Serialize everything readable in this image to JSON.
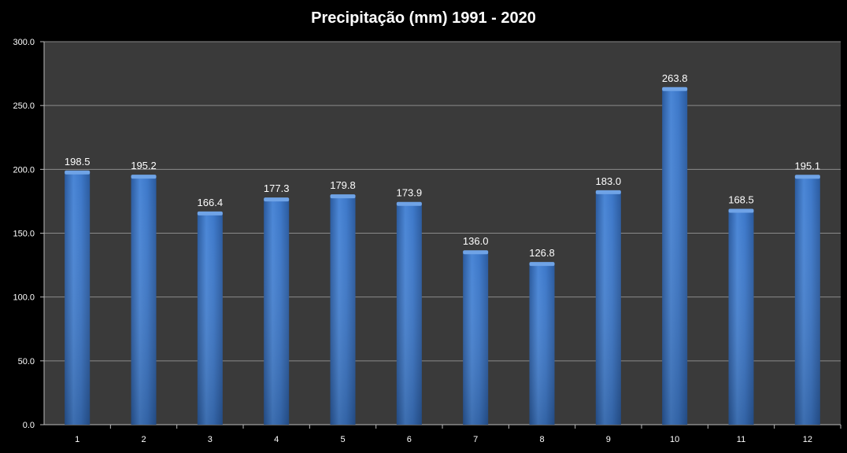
{
  "chart_data": {
    "type": "bar",
    "title": "Precipitação (mm) 1991 - 2020",
    "xlabel": "",
    "ylabel": "",
    "categories": [
      "1",
      "2",
      "3",
      "4",
      "5",
      "6",
      "7",
      "8",
      "9",
      "10",
      "11",
      "12"
    ],
    "values": [
      198.5,
      195.2,
      166.4,
      177.3,
      179.8,
      173.9,
      136.0,
      126.8,
      183.0,
      263.8,
      168.5,
      195.1
    ],
    "value_labels": [
      "198.5",
      "195.2",
      "166.4",
      "177.3",
      "179.8",
      "173.9",
      "136.0",
      "126.8",
      "183.0",
      "263.8",
      "168.5",
      "195.1"
    ],
    "ylim": [
      0,
      300
    ],
    "yticks": [
      0,
      50,
      100,
      150,
      200,
      250,
      300
    ],
    "ytick_labels": [
      "0.0",
      "50.0",
      "100.0",
      "150.0",
      "200.0",
      "250.0",
      "300.0"
    ],
    "grid": true,
    "legend": "none",
    "colors": {
      "background": "#000000",
      "plot_area": "#3a3a3a",
      "bar_top": "#6fa3e6",
      "bar_main": "#3d78c9",
      "bar_dark": "#2a5a9e",
      "grid": "#8a8a8a",
      "text": "#ffffff"
    }
  }
}
